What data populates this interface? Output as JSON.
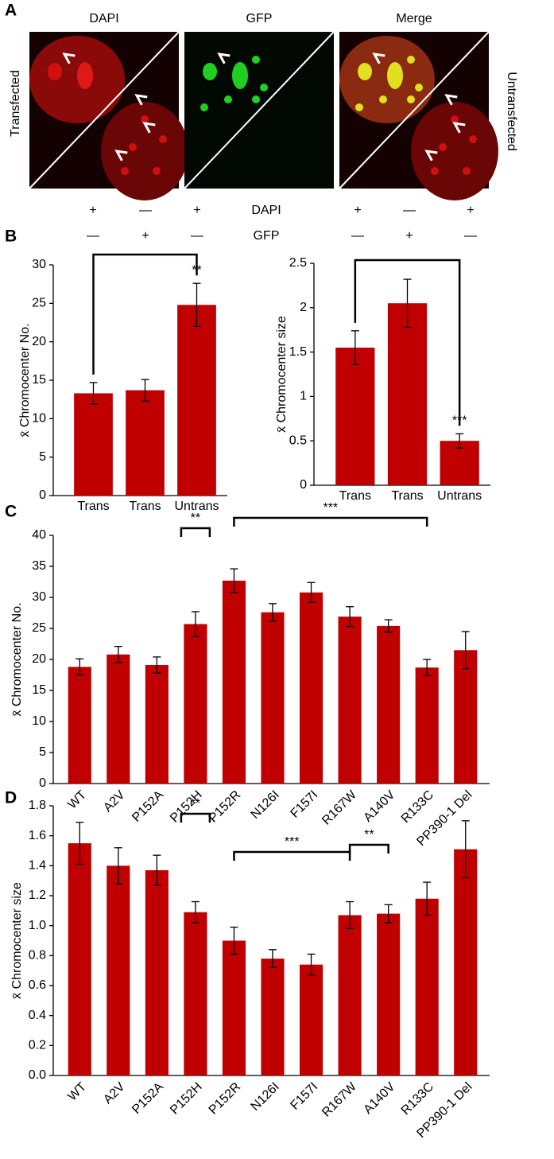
{
  "panel_labels": [
    "A",
    "B",
    "C",
    "D"
  ],
  "images": {
    "columns": [
      "DAPI",
      "GFP",
      "Merge"
    ],
    "rows": [
      "Transfected",
      "Untransfected"
    ]
  },
  "conditions": {
    "rows": [
      {
        "label": "DAPI",
        "left": [
          "+",
          "—",
          "+"
        ],
        "right": [
          "+",
          "—",
          "+"
        ]
      },
      {
        "label": "GFP",
        "left": [
          "—",
          "+",
          "—"
        ],
        "right": [
          "—",
          "+",
          "—"
        ]
      }
    ]
  },
  "chart_data": [
    {
      "type": "bar",
      "ylabel": "x̄ Chromocenter No.",
      "categories": [
        "Trans",
        "Trans",
        "Untrans"
      ],
      "values": [
        13.3,
        13.7,
        24.8
      ],
      "errors": [
        1.4,
        1.4,
        2.8
      ],
      "color": "#c00000",
      "ylim": [
        0,
        30
      ],
      "yticks": [
        0,
        5,
        10,
        15,
        20,
        25,
        30
      ],
      "xtick_rotation": 0,
      "annotations": [
        "**"
      ]
    },
    {
      "type": "bar",
      "ylabel": "x̄ Chromocenter size",
      "categories": [
        "Trans",
        "Trans",
        "Untrans"
      ],
      "values": [
        1.55,
        2.05,
        0.5
      ],
      "errors": [
        0.19,
        0.27,
        0.08
      ],
      "color": "#c00000",
      "ylim": [
        0,
        2.5
      ],
      "yticks": [
        0,
        0.5,
        1,
        1.5,
        2,
        2.5
      ],
      "xtick_rotation": 0,
      "annotations": [
        "***"
      ]
    },
    {
      "type": "bar",
      "ylabel": "x̄ Chromocenter No.",
      "categories": [
        "WT",
        "A2V",
        "P152A",
        "P152H",
        "P152R",
        "N126I",
        "F157I",
        "R167W",
        "A140V",
        "R133C",
        "PP390-1 Del"
      ],
      "values": [
        18.8,
        20.8,
        19.1,
        25.7,
        32.7,
        27.6,
        30.8,
        26.9,
        25.4,
        18.7,
        21.5
      ],
      "errors": [
        1.3,
        1.3,
        1.3,
        2.0,
        1.9,
        1.4,
        1.6,
        1.6,
        1.0,
        1.3,
        3.0
      ],
      "color": "#c00000",
      "ylim": [
        0,
        40
      ],
      "yticks": [
        0,
        5,
        10,
        15,
        20,
        25,
        30,
        35,
        40
      ],
      "xtick_rotation": 45,
      "annotations": [
        "**",
        "***"
      ]
    },
    {
      "type": "bar",
      "ylabel": "x̄ Chromocenter size",
      "categories": [
        "WT",
        "A2V",
        "P152A",
        "P152H",
        "P152R",
        "N126I",
        "F157I",
        "R167W",
        "A140V",
        "R133C",
        "PP390-1 Del"
      ],
      "values": [
        1.55,
        1.4,
        1.37,
        1.09,
        0.9,
        0.78,
        0.74,
        1.07,
        1.08,
        1.18,
        1.51
      ],
      "errors": [
        0.14,
        0.12,
        0.1,
        0.07,
        0.09,
        0.06,
        0.07,
        0.09,
        0.06,
        0.11,
        0.19
      ],
      "color": "#c00000",
      "ylim": [
        0,
        1.8
      ],
      "yticks": [
        {
          "value": 0,
          "label": "0.0"
        },
        0.2,
        0.4,
        0.6,
        0.8,
        {
          "value": 1,
          "label": "1.0"
        },
        1.2,
        1.4,
        1.6,
        1.8
      ],
      "xtick_rotation": 45,
      "annotations": [
        "**",
        "***",
        "**"
      ]
    }
  ]
}
